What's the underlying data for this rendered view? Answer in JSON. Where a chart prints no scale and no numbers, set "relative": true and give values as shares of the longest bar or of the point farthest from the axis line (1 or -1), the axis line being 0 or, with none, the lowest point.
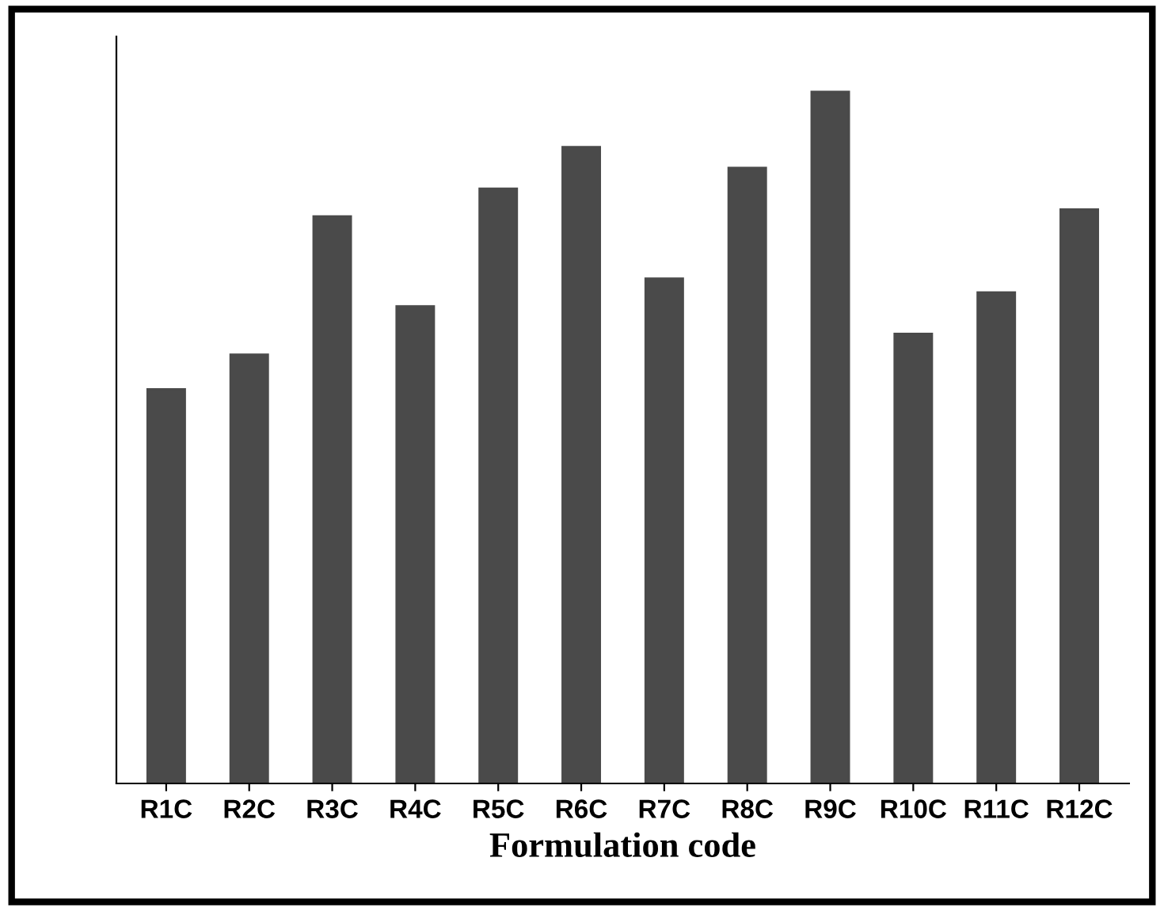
{
  "chart_data": {
    "type": "bar",
    "relative": true,
    "xlabel": "Formulation code",
    "categories": [
      "R1C",
      "R2C",
      "R3C",
      "R4C",
      "R5C",
      "R6C",
      "R7C",
      "R8C",
      "R9C",
      "R10C",
      "R11C",
      "R12C"
    ],
    "values": [
      0.57,
      0.62,
      0.82,
      0.69,
      0.86,
      0.92,
      0.73,
      0.89,
      1,
      0.65,
      0.71,
      0.83
    ],
    "color": "#4a4a4a",
    "grid": false,
    "legend": false
  }
}
